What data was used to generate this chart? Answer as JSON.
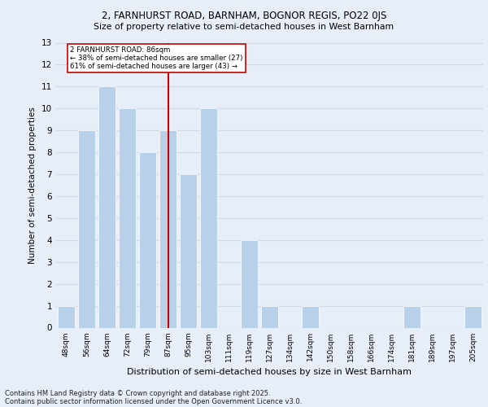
{
  "title1": "2, FARNHURST ROAD, BARNHAM, BOGNOR REGIS, PO22 0JS",
  "title2": "Size of property relative to semi-detached houses in West Barnham",
  "xlabel": "Distribution of semi-detached houses by size in West Barnham",
  "ylabel": "Number of semi-detached properties",
  "bin_labels": [
    "48sqm",
    "56sqm",
    "64sqm",
    "72sqm",
    "79sqm",
    "87sqm",
    "95sqm",
    "103sqm",
    "111sqm",
    "119sqm",
    "127sqm",
    "134sqm",
    "142sqm",
    "150sqm",
    "158sqm",
    "166sqm",
    "174sqm",
    "181sqm",
    "189sqm",
    "197sqm",
    "205sqm"
  ],
  "values": [
    1,
    9,
    11,
    10,
    8,
    9,
    7,
    10,
    0,
    4,
    1,
    0,
    1,
    0,
    0,
    0,
    0,
    1,
    0,
    0,
    1
  ],
  "bar_color": "#b8d0e8",
  "property_line_bin": 5,
  "property_label": "2 FARNHURST ROAD: 86sqm",
  "annotation_line1": "← 38% of semi-detached houses are smaller (27)",
  "annotation_line2": "61% of semi-detached houses are larger (43) →",
  "annotation_box_color": "#cc0000",
  "ylim_max": 13,
  "yticks": [
    0,
    1,
    2,
    3,
    4,
    5,
    6,
    7,
    8,
    9,
    10,
    11,
    12,
    13
  ],
  "grid_color": "#d0d8e8",
  "bg_color": "#e8eef8",
  "footer1": "Contains HM Land Registry data © Crown copyright and database right 2025.",
  "footer2": "Contains public sector information licensed under the Open Government Licence v3.0."
}
